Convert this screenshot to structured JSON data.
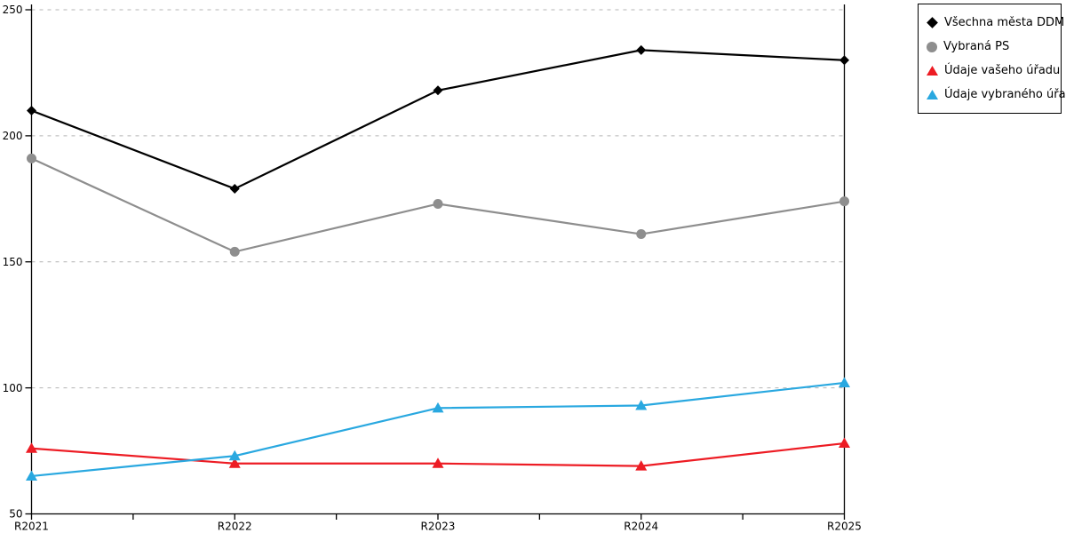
{
  "chart_data": {
    "type": "line",
    "title": "",
    "xlabel": "",
    "ylabel": "",
    "categories": [
      "R2021",
      "R2022",
      "R2023",
      "R2024",
      "R2025"
    ],
    "series": [
      {
        "name": "Všechna města DDM",
        "marker": "diamond",
        "color": "#000000",
        "values": [
          210,
          179,
          218,
          234,
          230
        ]
      },
      {
        "name": "Vybraná PS",
        "marker": "circle",
        "color": "#8E8E8E",
        "values": [
          191,
          154,
          173,
          161,
          174
        ]
      },
      {
        "name": "Údaje vašeho úřadu",
        "marker": "triangle",
        "color": "#ED1C24",
        "values": [
          76,
          70,
          70,
          69,
          78
        ]
      },
      {
        "name": "Údaje vybraného úřadu",
        "marker": "triangle",
        "color": "#29A8E0",
        "values": [
          65,
          73,
          92,
          93,
          102
        ]
      }
    ],
    "ylim": [
      50,
      250
    ],
    "ytick_step": 50,
    "ytick_labels": [
      "50",
      "100",
      "150",
      "200",
      "250"
    ],
    "grid": "horizontal-dashed",
    "legend_position": "top-right"
  },
  "style_colors": {
    "axis": "#000000",
    "gridline": "#b4b4b4",
    "background": "#ffffff"
  }
}
